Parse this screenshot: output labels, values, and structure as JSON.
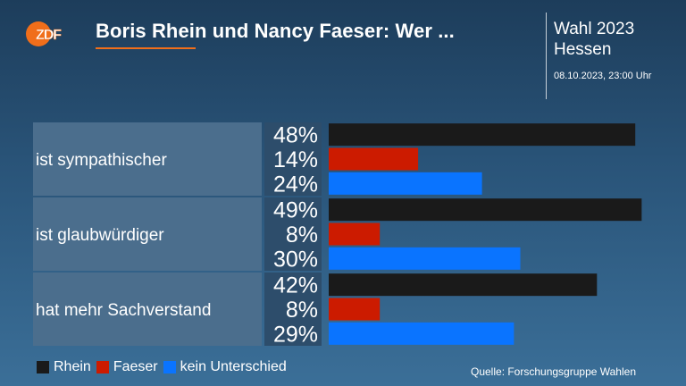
{
  "header": {
    "logo_text": "ZDF",
    "title": "Boris Rhein und Nancy Faeser: Wer ...",
    "election_line1": "Wahl 2023",
    "election_line2": "Hessen",
    "timestamp": "08.10.2023, 23:00 Uhr"
  },
  "chart_data": {
    "type": "bar",
    "orientation": "horizontal",
    "categories": [
      "ist sympathischer",
      "ist glaubwürdiger",
      "hat mehr Sachverstand"
    ],
    "series": [
      {
        "name": "Rhein",
        "values": [
          48,
          49,
          42
        ],
        "color": "#1a1a1a"
      },
      {
        "name": "Faeser",
        "values": [
          14,
          8,
          8
        ],
        "color": "#cc1b00"
      },
      {
        "name": "kein Unterschied",
        "values": [
          24,
          30,
          29
        ],
        "color": "#0a74ff"
      }
    ],
    "value_suffix": "%",
    "xlim": [
      0,
      50
    ],
    "grid": false,
    "legend_position": "bottom-left"
  },
  "source": "Quelle: Forschungsgruppe Wahlen",
  "colors": {
    "accent": "#f06e1a",
    "label_box": "#4b6e8d",
    "value_box": "#2d4d6b"
  }
}
